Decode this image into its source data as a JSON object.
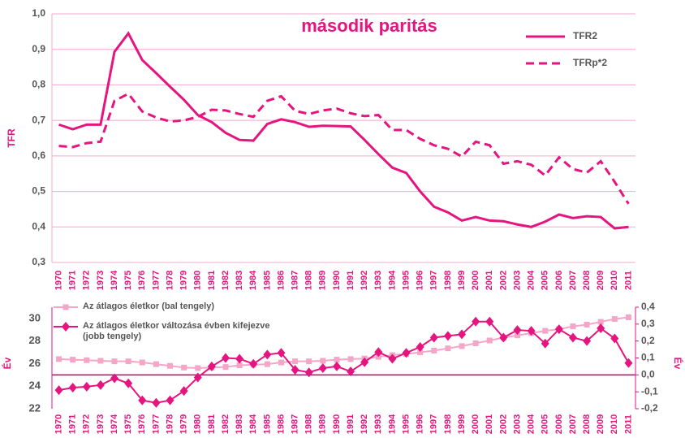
{
  "chart_data": [
    {
      "type": "line",
      "title": "második paritás",
      "y_label": "TFR",
      "categories": [
        "1970",
        "1971",
        "1972",
        "1973",
        "1974",
        "1975",
        "1976",
        "1977",
        "1978",
        "1979",
        "1980",
        "1981",
        "1982",
        "1983",
        "1984",
        "1985",
        "1986",
        "1987",
        "1988",
        "1989",
        "1990",
        "1991",
        "1992",
        "1993",
        "1994",
        "1995",
        "1996",
        "1997",
        "1998",
        "1999",
        "2000",
        "2001",
        "2002",
        "2003",
        "2004",
        "2005",
        "2006",
        "2007",
        "2008",
        "2009",
        "2010",
        "2011"
      ],
      "series": [
        {
          "name": "TFR2",
          "color": "#e6147f",
          "dash": "solid",
          "values": [
            0.688,
            0.675,
            0.688,
            0.688,
            0.893,
            0.945,
            0.87,
            0.833,
            0.795,
            0.758,
            0.715,
            0.695,
            0.665,
            0.645,
            0.643,
            0.69,
            0.703,
            0.695,
            0.682,
            0.685,
            0.684,
            0.683,
            0.645,
            0.605,
            0.567,
            0.552,
            0.5,
            0.457,
            0.441,
            0.418,
            0.428,
            0.418,
            0.416,
            0.407,
            0.4,
            0.415,
            0.435,
            0.425,
            0.43,
            0.428,
            0.396,
            0.4
          ]
        },
        {
          "name": "TFRp*2",
          "color": "#e6147f",
          "dash": "dashed",
          "values": [
            0.628,
            0.625,
            0.636,
            0.64,
            0.755,
            0.775,
            0.725,
            0.708,
            0.697,
            0.7,
            0.71,
            0.73,
            0.728,
            0.718,
            0.71,
            0.755,
            0.768,
            0.727,
            0.718,
            0.728,
            0.733,
            0.72,
            0.712,
            0.715,
            0.673,
            0.673,
            0.648,
            0.63,
            0.62,
            0.598,
            0.64,
            0.63,
            0.578,
            0.585,
            0.575,
            0.545,
            0.596,
            0.563,
            0.553,
            0.585,
            0.527,
            0.465
          ]
        }
      ],
      "ylim": [
        0.3,
        1.0
      ],
      "yticks": [
        {
          "value": 0.3,
          "label": "0,3"
        },
        {
          "value": 0.4,
          "label": "0,4"
        },
        {
          "value": 0.5,
          "label": "0,5"
        },
        {
          "value": 0.6,
          "label": "0,6"
        },
        {
          "value": 0.7,
          "label": "0,7"
        },
        {
          "value": 0.8,
          "label": "0,8"
        },
        {
          "value": 0.9,
          "label": "0,9"
        },
        {
          "value": 1.0,
          "label": "1,0"
        }
      ],
      "grid": true,
      "legend": "top-right"
    },
    {
      "type": "line",
      "y_label": "Év",
      "y2_label": "Év",
      "categories": [
        "1970",
        "1971",
        "1972",
        "1973",
        "1974",
        "1975",
        "1976",
        "1977",
        "1978",
        "1979",
        "1980",
        "1981",
        "1982",
        "1983",
        "1984",
        "1985",
        "1986",
        "1987",
        "1988",
        "1989",
        "1990",
        "1991",
        "1992",
        "1993",
        "1994",
        "1995",
        "1996",
        "1997",
        "1998",
        "1999",
        "2000",
        "2001",
        "2002",
        "2003",
        "2004",
        "2005",
        "2006",
        "2007",
        "2008",
        "2009",
        "2010",
        "2011"
      ],
      "series": [
        {
          "name": "Az átlagos életkor (bal tengely)",
          "color": "#f4a6c8",
          "marker": "square",
          "values": [
            26.4,
            26.35,
            26.3,
            26.25,
            26.2,
            26.2,
            26.1,
            25.95,
            25.8,
            25.65,
            25.6,
            25.65,
            25.7,
            25.85,
            25.9,
            25.95,
            26.1,
            26.2,
            26.2,
            26.25,
            26.35,
            26.4,
            26.45,
            26.6,
            26.75,
            26.85,
            27.0,
            27.15,
            27.35,
            27.55,
            27.8,
            28.05,
            28.3,
            28.5,
            28.7,
            28.9,
            29.05,
            29.3,
            29.45,
            29.7,
            29.95,
            30.1
          ]
        },
        {
          "name": "Az átlagos életkor változása évben kifejezve (jobb tengely)",
          "color": "#e6147f",
          "marker": "diamond",
          "axis": "y2",
          "values": [
            -0.09,
            -0.075,
            -0.07,
            -0.06,
            -0.02,
            -0.05,
            -0.15,
            -0.165,
            -0.15,
            -0.095,
            -0.015,
            0.05,
            0.1,
            0.095,
            0.065,
            0.12,
            0.13,
            0.03,
            0.015,
            0.04,
            0.05,
            0.02,
            0.075,
            0.135,
            0.095,
            0.13,
            0.165,
            0.22,
            0.23,
            0.24,
            0.315,
            0.315,
            0.22,
            0.265,
            0.26,
            0.185,
            0.27,
            0.22,
            0.2,
            0.275,
            0.215,
            0.07
          ]
        }
      ],
      "ylim": [
        22,
        31
      ],
      "yticks": [
        22,
        24,
        26,
        28,
        30
      ],
      "y2lim": [
        -0.2,
        0.4
      ],
      "y2ticks": [
        {
          "value": -0.2,
          "label": "-0,2"
        },
        {
          "value": -0.1,
          "label": "-0,1"
        },
        {
          "value": 0.0,
          "label": "0,0"
        },
        {
          "value": 0.1,
          "label": "0,1"
        },
        {
          "value": 0.2,
          "label": "0,2"
        },
        {
          "value": 0.3,
          "label": "0,3"
        },
        {
          "value": 0.4,
          "label": "0,4"
        }
      ],
      "grid": false,
      "legend": "top-left"
    }
  ]
}
